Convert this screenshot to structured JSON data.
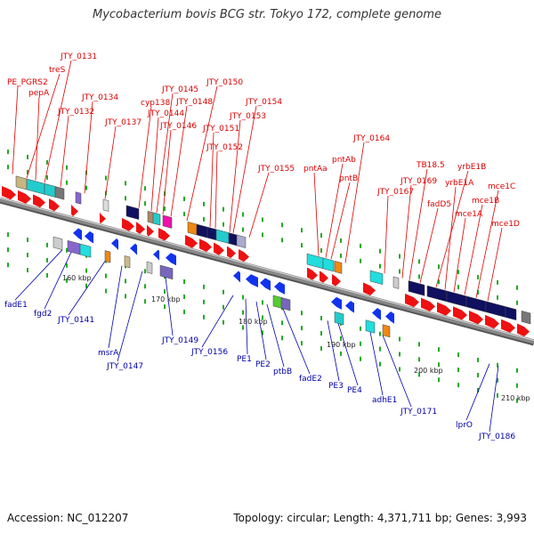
{
  "title": "Mycobacterium bovis BCG str. Tokyo 172, complete genome",
  "accession_text": "Accession: NC_012207",
  "summary_text": "Topology: circular; Length: 4,371,711 bp; Genes: 3,993",
  "colors": {
    "forward_gene": "#ee1111",
    "reverse_gene": "#1133ee",
    "top_label": "#dd0000",
    "bottom_label": "#0000aa",
    "backbone": "#888888",
    "tick": "#22aa22"
  },
  "top_labels": [
    {
      "text": "PE_PGRS2"
    },
    {
      "text": "treS"
    },
    {
      "text": "JTY_0131"
    },
    {
      "text": "pepA"
    },
    {
      "text": "JTY_0132"
    },
    {
      "text": "JTY_0134"
    },
    {
      "text": "JTY_0137"
    },
    {
      "text": "cyp138"
    },
    {
      "text": "JTY_0145"
    },
    {
      "text": "JTY_0144"
    },
    {
      "text": "JTY_0146"
    },
    {
      "text": "JTY_0148"
    },
    {
      "text": "JTY_0150"
    },
    {
      "text": "JTY_0151"
    },
    {
      "text": "JTY_0152"
    },
    {
      "text": "JTY_0153"
    },
    {
      "text": "JTY_0154"
    },
    {
      "text": "JTY_0155"
    },
    {
      "text": "pntAa"
    },
    {
      "text": "pntAb"
    },
    {
      "text": "pntB"
    },
    {
      "text": "JTY_0164"
    },
    {
      "text": "JTY_0167"
    },
    {
      "text": "JTY_0169"
    },
    {
      "text": "TB18.5"
    },
    {
      "text": "fadD5"
    },
    {
      "text": "yrbE1B"
    },
    {
      "text": "yrbE1A"
    },
    {
      "text": "mce1A"
    },
    {
      "text": "mce1B"
    },
    {
      "text": "mce1C"
    },
    {
      "text": "mce1D"
    }
  ],
  "bottom_labels": [
    {
      "text": "fadE1"
    },
    {
      "text": "fgd2"
    },
    {
      "text": "JTY_0141"
    },
    {
      "text": "msrA"
    },
    {
      "text": "JTY_0147"
    },
    {
      "text": "JTY_0149"
    },
    {
      "text": "JTY_0156"
    },
    {
      "text": "PE1"
    },
    {
      "text": "PE2"
    },
    {
      "text": "ptbB"
    },
    {
      "text": "fadE2"
    },
    {
      "text": "PE3"
    },
    {
      "text": "PE4"
    },
    {
      "text": "adhE1"
    },
    {
      "text": "JTY_0171"
    },
    {
      "text": "lprO"
    },
    {
      "text": "JTY_0186"
    }
  ],
  "ticks": [
    {
      "text": "160 kbp"
    },
    {
      "text": "170 kbp"
    },
    {
      "text": "180 kbp"
    },
    {
      "text": "190 kbp"
    },
    {
      "text": "200 kbp"
    },
    {
      "text": "210 kbp"
    }
  ]
}
